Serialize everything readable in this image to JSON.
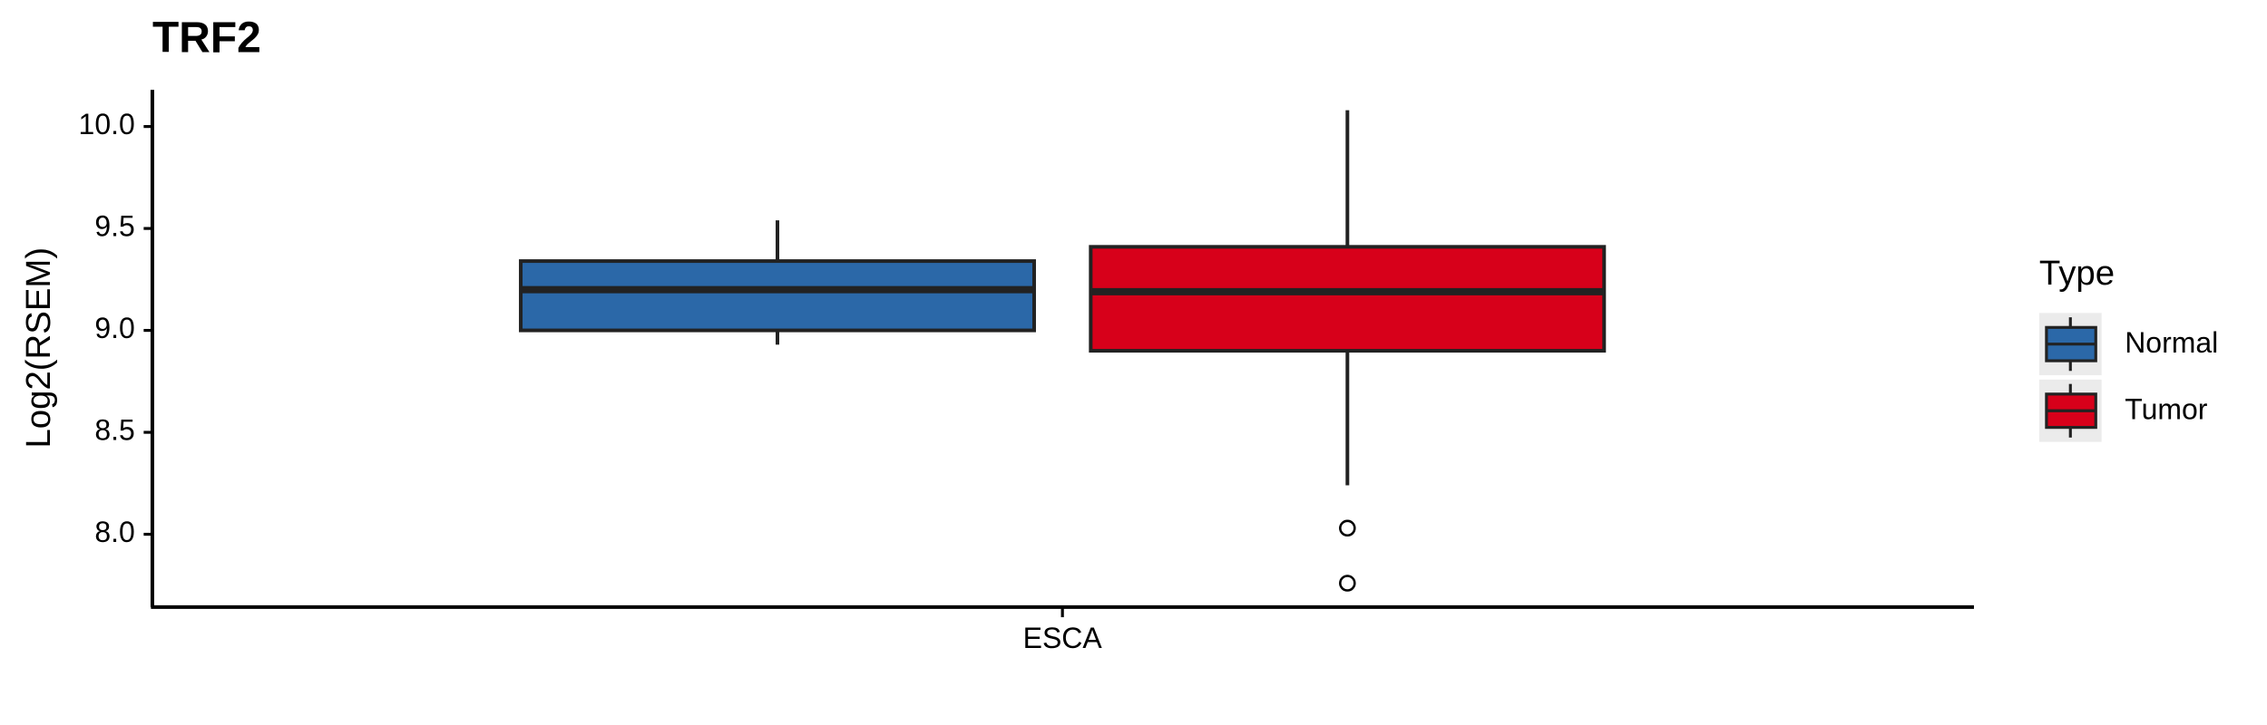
{
  "chart_data": {
    "type": "box",
    "title": "TRF2",
    "y_label": "Log2(RSEM)",
    "categories": [
      "ESCA"
    ],
    "legend_title": "Type",
    "legend_position": "right",
    "ylim": [
      7.65,
      10.18
    ],
    "yticks": [
      {
        "value": 10,
        "label": "10.0"
      },
      9.5,
      {
        "value": 9,
        "label": "9.0"
      },
      8.5,
      {
        "value": 8,
        "label": "8.0"
      }
    ],
    "series": [
      {
        "name": "Normal",
        "color": "#2b68a8",
        "boxes": [
          {
            "min": 8.93,
            "q1": 9.0,
            "median": 9.2,
            "q3": 9.34,
            "max": 9.54,
            "outliers": []
          }
        ]
      },
      {
        "name": "Tumor",
        "color": "#d7001a",
        "boxes": [
          {
            "min": 8.24,
            "q1": 8.9,
            "median": 9.19,
            "q3": 9.41,
            "max": 10.08,
            "outliers": [
              8.03,
              7.76
            ]
          }
        ]
      }
    ]
  }
}
